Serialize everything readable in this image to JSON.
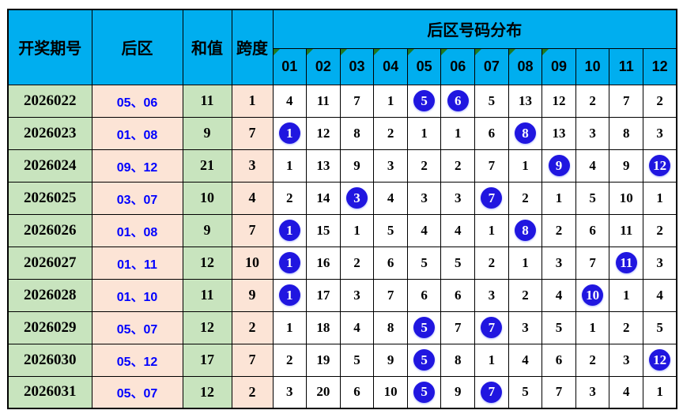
{
  "chart_data": {
    "type": "table",
    "title": "后区号码分布",
    "header": {
      "period": "开奖期号",
      "back_zone": "后区",
      "sum": "和值",
      "span": "跨度",
      "distribution_title": "后区号码分布",
      "number_columns": [
        "01",
        "02",
        "03",
        "04",
        "05",
        "06",
        "07",
        "08",
        "09",
        "10",
        "11",
        "12"
      ],
      "comment_marked_columns": [
        "01",
        "02",
        "03",
        "04",
        "05",
        "06",
        "07",
        "08",
        "09"
      ]
    },
    "rows": [
      {
        "period": "2026022",
        "back_zone": "05、06",
        "sum": "11",
        "span": "1",
        "distribution": [
          "4",
          "11",
          "7",
          "1",
          "5",
          "6",
          "5",
          "13",
          "12",
          "2",
          "7",
          "2"
        ],
        "hit_columns": [
          5,
          6
        ]
      },
      {
        "period": "2026023",
        "back_zone": "01、08",
        "sum": "9",
        "span": "7",
        "distribution": [
          "1",
          "12",
          "8",
          "2",
          "1",
          "1",
          "6",
          "8",
          "13",
          "3",
          "8",
          "3"
        ],
        "hit_columns": [
          1,
          8
        ]
      },
      {
        "period": "2026024",
        "back_zone": "09、12",
        "sum": "21",
        "span": "3",
        "distribution": [
          "1",
          "13",
          "9",
          "3",
          "2",
          "2",
          "7",
          "1",
          "9",
          "4",
          "9",
          "12"
        ],
        "hit_columns": [
          9,
          12
        ]
      },
      {
        "period": "2026025",
        "back_zone": "03、07",
        "sum": "10",
        "span": "4",
        "distribution": [
          "2",
          "14",
          "3",
          "4",
          "3",
          "3",
          "7",
          "2",
          "1",
          "5",
          "10",
          "1"
        ],
        "hit_columns": [
          3,
          7
        ]
      },
      {
        "period": "2026026",
        "back_zone": "01、08",
        "sum": "9",
        "span": "7",
        "distribution": [
          "1",
          "15",
          "1",
          "5",
          "4",
          "4",
          "1",
          "8",
          "2",
          "6",
          "11",
          "2"
        ],
        "hit_columns": [
          1,
          8
        ]
      },
      {
        "period": "2026027",
        "back_zone": "01、11",
        "sum": "12",
        "span": "10",
        "distribution": [
          "1",
          "16",
          "2",
          "6",
          "5",
          "5",
          "2",
          "1",
          "3",
          "7",
          "11",
          "3"
        ],
        "hit_columns": [
          1,
          11
        ]
      },
      {
        "period": "2026028",
        "back_zone": "01、10",
        "sum": "11",
        "span": "9",
        "distribution": [
          "1",
          "17",
          "3",
          "7",
          "6",
          "6",
          "3",
          "2",
          "4",
          "10",
          "1",
          "4"
        ],
        "hit_columns": [
          1,
          10
        ]
      },
      {
        "period": "2026029",
        "back_zone": "05、07",
        "sum": "12",
        "span": "2",
        "distribution": [
          "1",
          "18",
          "4",
          "8",
          "5",
          "7",
          "7",
          "3",
          "5",
          "1",
          "2",
          "5"
        ],
        "hit_columns": [
          5,
          7
        ]
      },
      {
        "period": "2026030",
        "back_zone": "05、12",
        "sum": "17",
        "span": "7",
        "distribution": [
          "2",
          "19",
          "5",
          "9",
          "5",
          "8",
          "1",
          "4",
          "6",
          "2",
          "3",
          "12"
        ],
        "hit_columns": [
          5,
          12
        ]
      },
      {
        "period": "2026031",
        "back_zone": "05、07",
        "sum": "12",
        "span": "2",
        "distribution": [
          "3",
          "20",
          "6",
          "10",
          "5",
          "9",
          "7",
          "5",
          "7",
          "3",
          "4",
          "1"
        ],
        "hit_columns": [
          5,
          7
        ]
      }
    ]
  },
  "colors": {
    "header_bg": "#00AEEF",
    "period_bg": "#C8E4BE",
    "back_zone_bg": "#FCE4D6",
    "back_zone_text": "#0000FF",
    "ball_bg": "#2016E0",
    "ball_text": "#FFFFFF",
    "corner_triangle": "#217A21",
    "grid": "#000000"
  }
}
